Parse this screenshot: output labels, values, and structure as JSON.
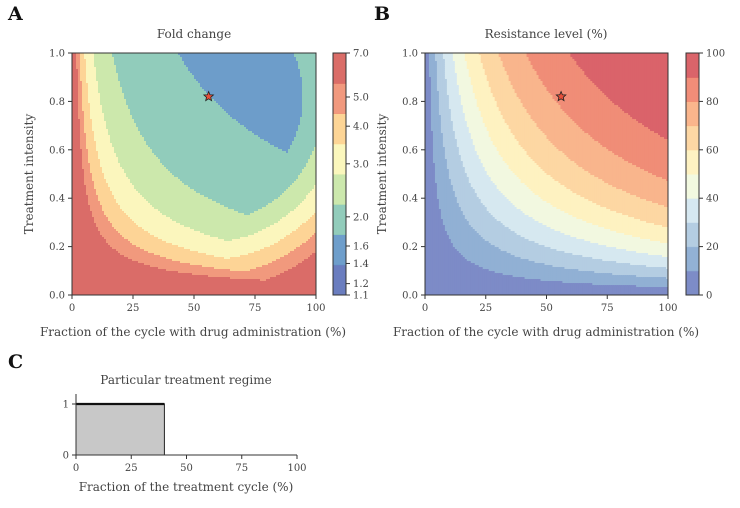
{
  "figure": {
    "panel_letters": [
      "A",
      "B",
      "C"
    ]
  },
  "chart_data": [
    {
      "panel": "A",
      "type": "heatmap",
      "title": "Fold change",
      "xlabel": "Fraction of the cycle with drug administration (%)",
      "ylabel": "Treatment intensity",
      "xlim": [
        0,
        100
      ],
      "ylim": [
        0,
        1
      ],
      "xticks": [
        "0",
        "25",
        "50",
        "75",
        "100"
      ],
      "yticks": [
        "0.0",
        "0.2",
        "0.4",
        "0.6",
        "0.8",
        "1.0"
      ],
      "colorbar": {
        "scale": "log",
        "range": [
          1.1,
          7.0
        ],
        "tick_values": [
          1.1,
          1.2,
          1.4,
          1.6,
          2.0,
          3.0,
          4.0,
          5.0,
          7.0
        ],
        "tick_labels": [
          "1.1",
          "1.2",
          "1.4",
          "1.6",
          "2.0",
          "3.0",
          "4.0",
          "5.0",
          "7.0"
        ]
      },
      "colormap": [
        "#5a6fb8",
        "#5e93c5",
        "#86c7b4",
        "#c7e6a4",
        "#fbf6b6",
        "#fdd08b",
        "#f08e70",
        "#d65d58"
      ],
      "marker": {
        "x": 56,
        "y": 0.82,
        "shape": "star",
        "color": "#e8503a"
      },
      "grid": false
    },
    {
      "panel": "B",
      "type": "heatmap",
      "title": "Resistance level (%)",
      "xlabel": "Fraction of the cycle with drug administration (%)",
      "ylabel": "Treatment intensity",
      "xlim": [
        0,
        100
      ],
      "ylim": [
        0,
        1
      ],
      "xticks": [
        "0",
        "25",
        "50",
        "75",
        "100"
      ],
      "yticks": [
        "0.0",
        "0.2",
        "0.4",
        "0.6",
        "0.8",
        "1.0"
      ],
      "colorbar": {
        "scale": "linear",
        "range": [
          0,
          100
        ],
        "levels": 10,
        "tick_values": [
          0,
          20,
          40,
          60,
          80,
          100
        ],
        "tick_labels": [
          "0",
          "20",
          "40",
          "60",
          "80",
          "100"
        ]
      },
      "colormap": [
        "#6f7fc1",
        "#86a8d0",
        "#acc8df",
        "#d2e6ef",
        "#f1f8dd",
        "#fef1bb",
        "#fdd39a",
        "#f9ad80",
        "#ef8169",
        "#d6535a"
      ],
      "marker": {
        "x": 56,
        "y": 0.82,
        "shape": "star",
        "color": "#e8503a"
      },
      "grid": false
    },
    {
      "panel": "C",
      "type": "area",
      "title": "Particular treatment regime",
      "xlabel": "Fraction of the treatment cycle (%)",
      "ylabel": "",
      "xlim": [
        0,
        100
      ],
      "ylim": [
        0,
        1
      ],
      "xticks": [
        "0",
        "25",
        "50",
        "75",
        "100"
      ],
      "yticks": [
        "0",
        "1"
      ],
      "series": [
        {
          "x": [
            0,
            40,
            40,
            100
          ],
          "y": [
            1,
            1,
            0,
            0
          ]
        }
      ],
      "fill_color": "#c8c8c8",
      "grid": false
    }
  ]
}
